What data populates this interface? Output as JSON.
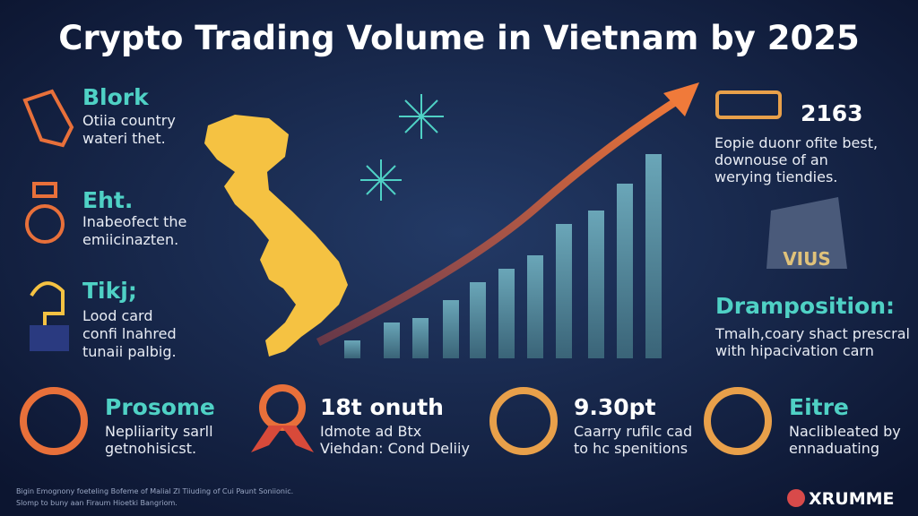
{
  "header": {
    "title": "Crypto Trading Volume  in Vietnam by 2025"
  },
  "left_items": [
    {
      "heading": "Blork",
      "lines": [
        "Otiia country",
        "wateri thet."
      ]
    },
    {
      "heading": "Eht.",
      "lines": [
        "Inabeofect the",
        "emiicinazten."
      ]
    },
    {
      "heading": "Tikj;",
      "lines": [
        "Lood card",
        "confi lnahred",
        "tunaii palbig."
      ]
    }
  ],
  "right_items": [
    {
      "heading": "2163",
      "lines": [
        "Eopie duonr ofite best,",
        "downouse of an",
        "werying tiendies."
      ]
    },
    {
      "heading": "Dramposition:",
      "lines": [
        "Tmalh,coary shact prescral",
        "with hipacivation carn"
      ]
    }
  ],
  "icon_label": "VIUS",
  "bottom_items": [
    {
      "heading": "Prosome",
      "lines": [
        "Nepliiarity sarll",
        "getnohisicst."
      ]
    },
    {
      "heading": "18t onuth",
      "lines": [
        "Idmote ad Btx",
        "Viehdan: Cond Deliiy"
      ]
    },
    {
      "heading": "9.30pt",
      "lines": [
        "Caarry rufilc cad",
        "to hc spenitions"
      ]
    },
    {
      "heading": "Eitre",
      "lines": [
        "Naclibleated by",
        "ennaduating"
      ]
    }
  ],
  "footer": {
    "lines": [
      "Bigin Emognony foeteling Bofeme of Malial ZI Tiiuding of Cui Paunt Soniionic.",
      "Slomp to buny aan Firaum Hioetki Bangriom."
    ],
    "brand": "XRUMME"
  }
}
